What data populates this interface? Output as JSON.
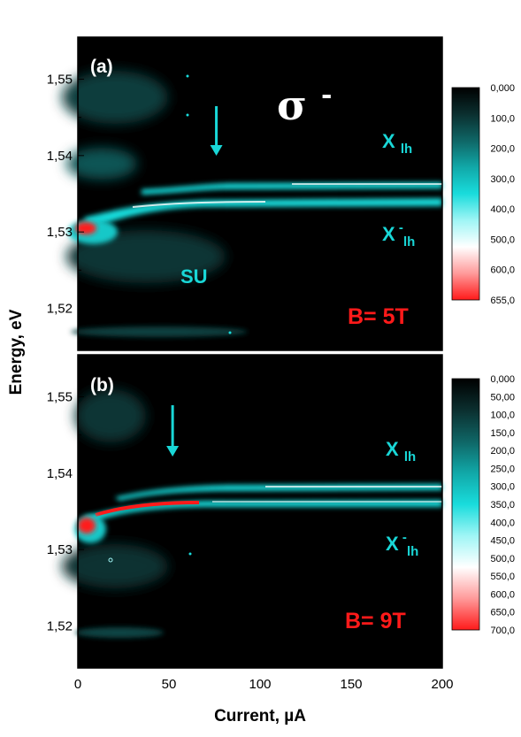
{
  "figure": {
    "xlabel": "Current, µA",
    "ylabel": "Energy, eV",
    "x_ticks": [
      "0",
      "50",
      "100",
      "150",
      "200"
    ]
  },
  "colors": {
    "background": "#000000",
    "colormap": [
      "#000000",
      "#0b2f2f",
      "#0f6666",
      "#11a8a8",
      "#19dcdc",
      "#9ff5f5",
      "#ffffff",
      "#ff9a9a",
      "#ff1a1a"
    ],
    "annotation": "#19d7d7",
    "field_label": "#ff1a1a",
    "arrow": "#19d7d7"
  },
  "chart_data": [
    {
      "type": "heatmap",
      "panel_label": "(a)",
      "polarization": "σ",
      "polarization_sup": "-",
      "field_label": "B= 5T",
      "annotations": {
        "xlh": "X",
        "xlh_sub": "lh",
        "xlh_minus": "X",
        "xlh_minus_sub": "lh",
        "xlh_minus_sup": "-",
        "su": "SU"
      },
      "xlim": [
        0,
        200
      ],
      "ylim": [
        1.5145,
        1.5555
      ],
      "y_ticks": [
        "1,52",
        "1,53",
        "1,54",
        "1,55"
      ],
      "y_tick_values": [
        1.52,
        1.53,
        1.54,
        1.55
      ],
      "arrow_current": 76,
      "colorbar_labels": [
        "0,000",
        "100,0",
        "200,0",
        "300,0",
        "400,0",
        "500,0",
        "600,0",
        "655,0"
      ],
      "colorbar_range": [
        0,
        655
      ],
      "bands": [
        {
          "name": "X_lh",
          "energy": 1.5363,
          "current_range": [
            70,
            200
          ],
          "intensity": 450
        },
        {
          "name": "X_lh-",
          "energy": 1.5337,
          "current_range": [
            20,
            200
          ],
          "intensity": 420
        },
        {
          "name": "SU",
          "energy": 1.529,
          "current_range": [
            0,
            55
          ],
          "intensity": 200
        },
        {
          "name": "low-current peak",
          "energy": 1.5305,
          "current_range": [
            0,
            10
          ],
          "intensity": 655
        }
      ]
    },
    {
      "type": "heatmap",
      "panel_label": "(b)",
      "field_label": "B= 9T",
      "annotations": {
        "xlh": "X",
        "xlh_sub": "lh",
        "xlh_minus": "X",
        "xlh_minus_sub": "lh",
        "xlh_minus_sup": "-"
      },
      "xlim": [
        0,
        200
      ],
      "ylim": [
        1.5145,
        1.5555
      ],
      "y_ticks": [
        "1,52",
        "1,53",
        "1,54",
        "1,55"
      ],
      "y_tick_values": [
        1.52,
        1.53,
        1.54,
        1.55
      ],
      "arrow_current": 52,
      "colorbar_labels": [
        "0,000",
        "50,00",
        "100,0",
        "150,0",
        "200,0",
        "250,0",
        "300,0",
        "350,0",
        "400,0",
        "450,0",
        "500,0",
        "550,0",
        "600,0",
        "650,0",
        "700,0"
      ],
      "colorbar_range": [
        0,
        700
      ],
      "bands": [
        {
          "name": "X_lh",
          "energy": 1.538,
          "current_range": [
            40,
            200
          ],
          "intensity": 450
        },
        {
          "name": "X_lh-",
          "energy": 1.5358,
          "current_range": [
            10,
            200
          ],
          "intensity": 450
        },
        {
          "name": "low-current peak",
          "energy": 1.533,
          "current_range": [
            0,
            60
          ],
          "intensity": 700
        }
      ]
    }
  ]
}
